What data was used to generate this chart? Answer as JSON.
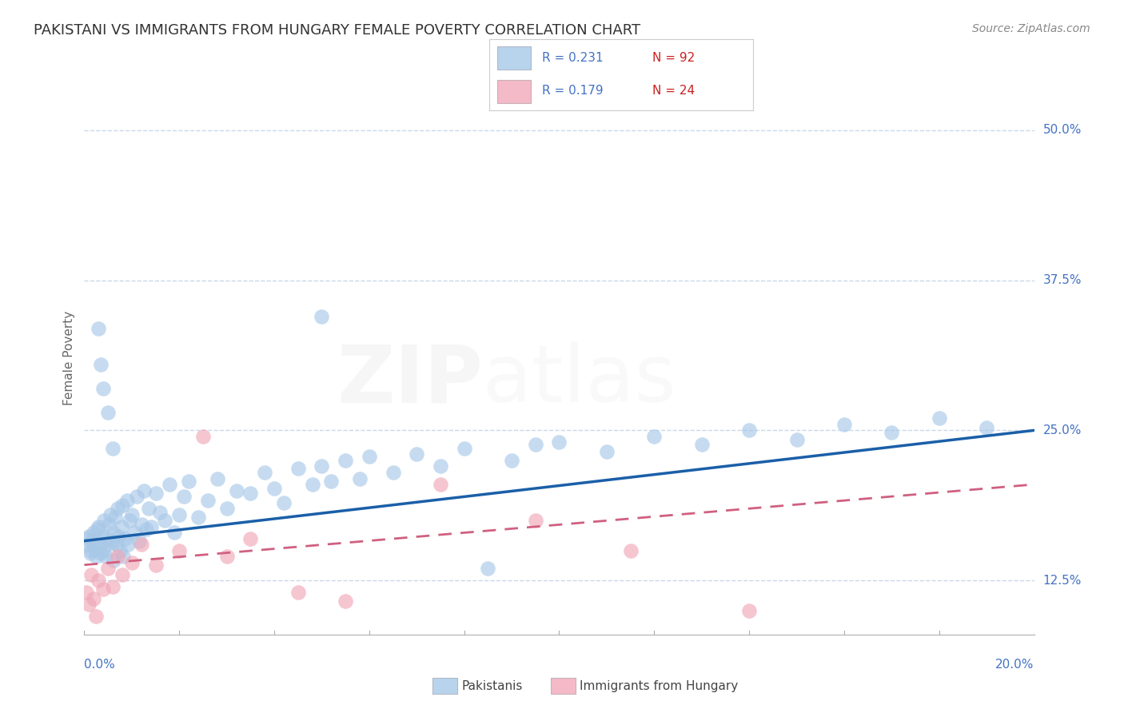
{
  "title": "PAKISTANI VS IMMIGRANTS FROM HUNGARY FEMALE POVERTY CORRELATION CHART",
  "source": "Source: ZipAtlas.com",
  "ylabel": "Female Poverty",
  "yticks": [
    12.5,
    25.0,
    37.5,
    50.0
  ],
  "ytick_labels": [
    "12.5%",
    "25.0%",
    "37.5%",
    "50.0%"
  ],
  "xtick_left": "0.0%",
  "xtick_right": "20.0%",
  "xlim": [
    0.0,
    20.0
  ],
  "ylim": [
    8.0,
    54.0
  ],
  "legend_r1": "R = 0.231",
  "legend_n1": "N = 92",
  "legend_r2": "R = 0.179",
  "legend_n2": "N = 24",
  "blue_scatter_color": "#a8c8e8",
  "pink_scatter_color": "#f0a8b8",
  "blue_line_color": "#1a5fa8",
  "pink_line_color": "#d06080",
  "blue_legend_color": "#b8d4ec",
  "pink_legend_color": "#f4bac8",
  "grid_color": "#c8d8ea",
  "title_color": "#333333",
  "source_color": "#888888",
  "axis_tick_color": "#4472c4",
  "ylabel_color": "#666666",
  "legend_border_color": "#cccccc",
  "bottom_legend_label1": "Pakistanis",
  "bottom_legend_label2": "Immigrants from Hungary",
  "pak_line_x0": 0.0,
  "pak_line_y0": 15.8,
  "pak_line_x1": 20.0,
  "pak_line_y1": 25.0,
  "hun_line_x0": 0.0,
  "hun_line_y0": 13.8,
  "hun_line_x1": 20.0,
  "hun_line_y1": 20.5
}
